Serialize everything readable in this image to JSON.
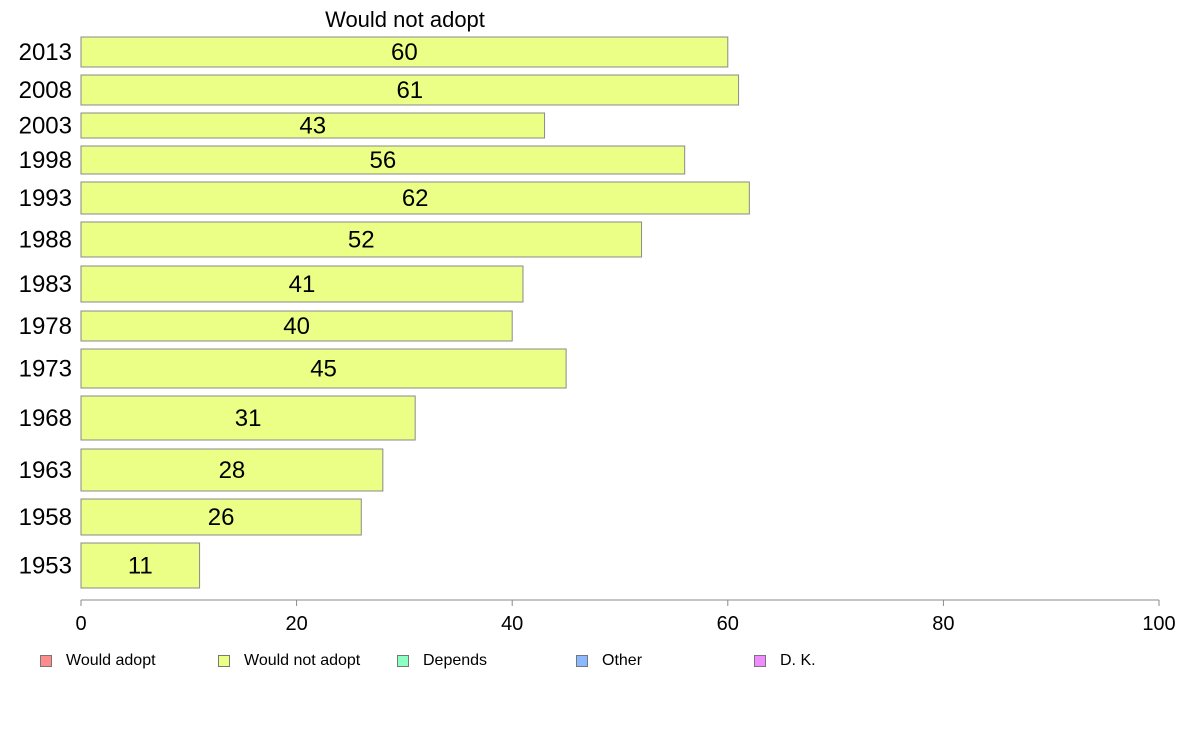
{
  "chart_data": {
    "type": "bar",
    "orientation": "horizontal",
    "title": "Would not adopt",
    "categories": [
      "2013",
      "2008",
      "2003",
      "1998",
      "1993",
      "1988",
      "1983",
      "1978",
      "1973",
      "1968",
      "1963",
      "1958",
      "1953"
    ],
    "series": [
      {
        "name": "Would not adopt",
        "color": "#ebff86",
        "values": [
          60,
          61,
          43,
          56,
          62,
          52,
          41,
          40,
          45,
          31,
          28,
          26,
          11
        ]
      }
    ],
    "data_labels": [
      "60",
      "61",
      "43",
      "56",
      "62",
      "52",
      "41",
      "40",
      "45",
      "31",
      "28",
      "26",
      "11"
    ],
    "xlim": [
      0,
      100
    ],
    "x_ticks": [
      0,
      20,
      40,
      60,
      80,
      100
    ],
    "grid": false,
    "legend_position": "bottom",
    "legend": [
      {
        "label": "Would adopt",
        "color": "#ff8c8c"
      },
      {
        "label": "Would not adopt",
        "color": "#ebff86"
      },
      {
        "label": "Depends",
        "color": "#8cffc3"
      },
      {
        "label": "Other",
        "color": "#8cb8ff"
      },
      {
        "label": "D. K.",
        "color": "#f08cff"
      }
    ]
  }
}
